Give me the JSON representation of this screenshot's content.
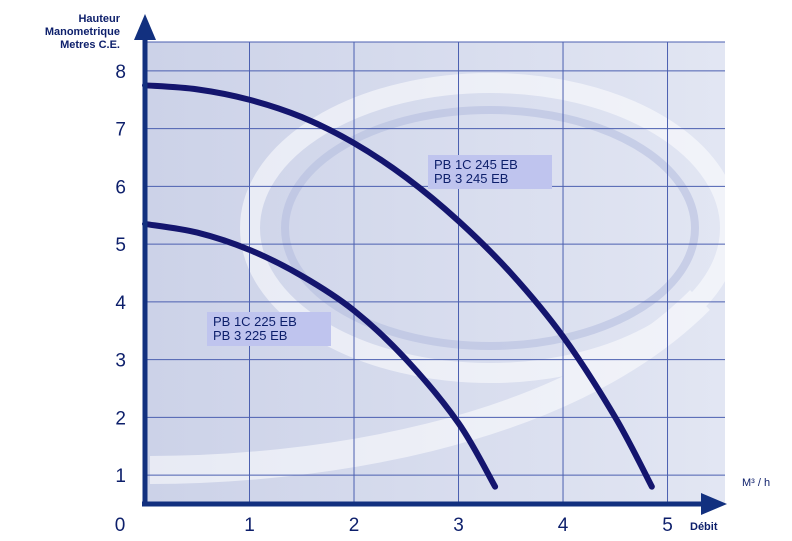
{
  "chart_data": {
    "type": "line",
    "ylabel_lines": [
      "Hauteur",
      "Manometrique",
      "Metres C.E."
    ],
    "xunit": "M³ / h",
    "xlabel": "Débit",
    "origin_label": "0",
    "xlim": [
      0,
      5.55
    ],
    "ylim": [
      0.5,
      8.5
    ],
    "x_ticks": [
      "1",
      "2",
      "3",
      "4",
      "5"
    ],
    "y_ticks": [
      "1",
      "2",
      "3",
      "4",
      "5",
      "6",
      "7",
      "8"
    ],
    "grid": true,
    "series": [
      {
        "label_lines": [
          "PB 1C 245 EB",
          "PB 3 245 EB"
        ],
        "x": [
          0,
          0.5,
          1,
          1.5,
          2,
          2.5,
          3,
          3.5,
          4,
          4.5,
          4.85
        ],
        "y": [
          7.75,
          7.68,
          7.5,
          7.2,
          6.75,
          6.15,
          5.4,
          4.5,
          3.4,
          2.0,
          0.8
        ]
      },
      {
        "label_lines": [
          "PB 1C 225 EB",
          "PB 3 225 EB"
        ],
        "x": [
          0,
          0.5,
          1,
          1.5,
          2,
          2.5,
          3,
          3.35
        ],
        "y": [
          5.35,
          5.2,
          4.9,
          4.45,
          3.85,
          3.0,
          1.9,
          0.8
        ]
      }
    ]
  },
  "colors": {
    "curve": "#14156e",
    "axis": "#12307f",
    "grid": "#4b5fb0",
    "plot_bg": "#cdd3e9",
    "label_bg": "#bfc4ee"
  }
}
